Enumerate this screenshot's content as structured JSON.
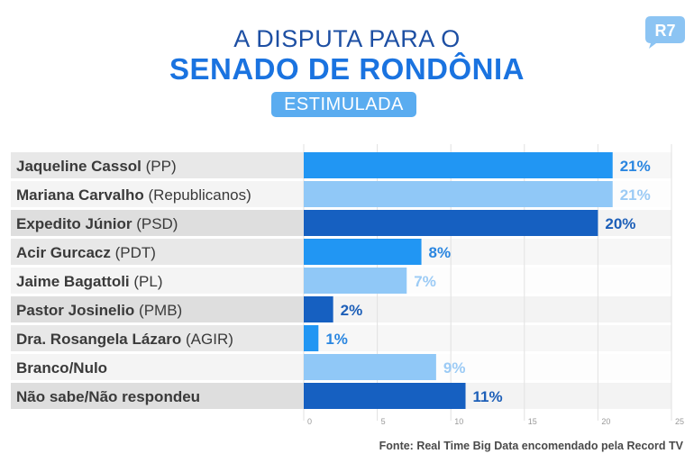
{
  "header": {
    "title_line1": "A DISPUTA PARA O",
    "title_line2": "SENADO DE RONDÔNIA",
    "badge": "ESTIMULADA",
    "logo_text": "R7"
  },
  "colors": {
    "primary_blue": "#2196f3",
    "light_blue": "#90c8f7",
    "dark_blue": "#1660c1",
    "title_dark": "#1d4fa3",
    "title_accent": "#1a73e0",
    "badge_bg": "#5aacf0",
    "logo_bg": "#8cc4f3"
  },
  "chart_data": {
    "type": "bar",
    "orientation": "horizontal",
    "title": "A DISPUTA PARA O SENADO DE RONDÔNIA",
    "subtitle": "ESTIMULADA",
    "categories": [
      {
        "name": "Jaqueline Cassol",
        "party": "(PP)"
      },
      {
        "name": "Mariana Carvalho",
        "party": "(Republicanos)"
      },
      {
        "name": "Expedito Júnior",
        "party": "(PSD)"
      },
      {
        "name": "Acir Gurcacz",
        "party": "(PDT)"
      },
      {
        "name": "Jaime Bagattoli",
        "party": "(PL)"
      },
      {
        "name": "Pastor Josinelio",
        "party": "(PMB)"
      },
      {
        "name": "Dra. Rosangela Lázaro",
        "party": "(AGIR)"
      },
      {
        "name": "Branco/Nulo",
        "party": ""
      },
      {
        "name": "Não sabe/Não respondeu",
        "party": ""
      }
    ],
    "values": [
      21,
      21,
      20,
      8,
      7,
      2,
      1,
      9,
      11
    ],
    "labels": [
      "21%",
      "21%",
      "20%",
      "8%",
      "7%",
      "2%",
      "1%",
      "9%",
      "11%"
    ],
    "bar_colors": [
      "#2196f3",
      "#90c8f7",
      "#1660c1",
      "#2196f3",
      "#90c8f7",
      "#1660c1",
      "#2196f3",
      "#90c8f7",
      "#1660c1"
    ],
    "label_colors": [
      "#2a86e0",
      "#9ccbf5",
      "#1d5fb8",
      "#2a86e0",
      "#9ccbf5",
      "#1d5fb8",
      "#2a86e0",
      "#9ccbf5",
      "#1d5fb8"
    ],
    "xlim": [
      0,
      25
    ],
    "xticks": [
      0,
      5,
      10,
      15,
      20,
      25
    ],
    "xlabel": "",
    "ylabel": "",
    "grid": true,
    "legend": "none"
  },
  "footer": {
    "source": "Fonte: Real Time Big Data encomendado pela Record TV"
  }
}
